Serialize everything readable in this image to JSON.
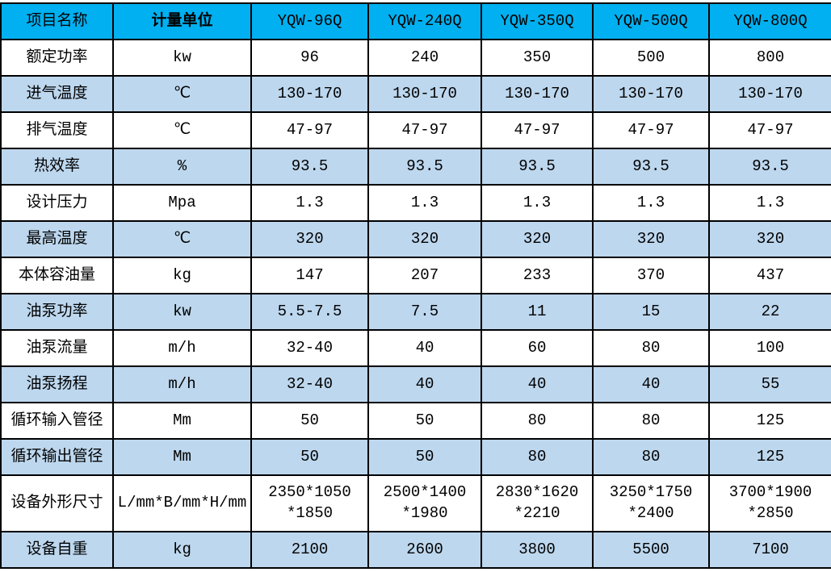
{
  "colors": {
    "header_bg": "#00b0f0",
    "alt_row_bg": "#bdd7ee",
    "row_bg": "#ffffff",
    "border": "#000000",
    "text": "#000000"
  },
  "table": {
    "columns": [
      "项目名称",
      "计量单位",
      "YQW-96Q",
      "YQW-240Q",
      "YQW-350Q",
      "YQW-500Q",
      "YQW-800Q"
    ],
    "rows": [
      {
        "name": "额定功率",
        "unit": "kw",
        "values": [
          "96",
          "240",
          "350",
          "500",
          "800"
        ]
      },
      {
        "name": "进气温度",
        "unit": "℃",
        "values": [
          "130-170",
          "130-170",
          "130-170",
          "130-170",
          "130-170"
        ]
      },
      {
        "name": "排气温度",
        "unit": "℃",
        "values": [
          "47-97",
          "47-97",
          "47-97",
          "47-97",
          "47-97"
        ]
      },
      {
        "name": "热效率",
        "unit": "%",
        "values": [
          "93.5",
          "93.5",
          "93.5",
          "93.5",
          "93.5"
        ]
      },
      {
        "name": "设计压力",
        "unit": "Mpa",
        "values": [
          "1.3",
          "1.3",
          "1.3",
          "1.3",
          "1.3"
        ]
      },
      {
        "name": "最高温度",
        "unit": "℃",
        "values": [
          "320",
          "320",
          "320",
          "320",
          "320"
        ]
      },
      {
        "name": "本体容油量",
        "unit": "kg",
        "values": [
          "147",
          "207",
          "233",
          "370",
          "437"
        ]
      },
      {
        "name": "油泵功率",
        "unit": "kw",
        "values": [
          "5.5-7.5",
          "7.5",
          "11",
          "15",
          "22"
        ]
      },
      {
        "name": "油泵流量",
        "unit": "m/h",
        "values": [
          "32-40",
          "40",
          "60",
          "80",
          "100"
        ]
      },
      {
        "name": "油泵扬程",
        "unit": "m/h",
        "values": [
          "32-40",
          "40",
          "40",
          "40",
          "55"
        ]
      },
      {
        "name": "循环输入管径",
        "unit": "Mm",
        "values": [
          "50",
          "50",
          "80",
          "80",
          "125"
        ]
      },
      {
        "name": "循环输出管径",
        "unit": "Mm",
        "values": [
          "50",
          "50",
          "80",
          "80",
          "125"
        ]
      },
      {
        "name": "设备外形尺寸",
        "unit": "L/mm*B/mm*H/mm",
        "values": [
          "2350*1050\n*1850",
          "2500*1400\n*1980",
          "2830*1620\n*2210",
          "3250*1750\n*2400",
          "3700*1900\n*2850"
        ]
      },
      {
        "name": "设备自重",
        "unit": "kg",
        "values": [
          "2100",
          "2600",
          "3800",
          "5500",
          "7100"
        ]
      }
    ]
  }
}
